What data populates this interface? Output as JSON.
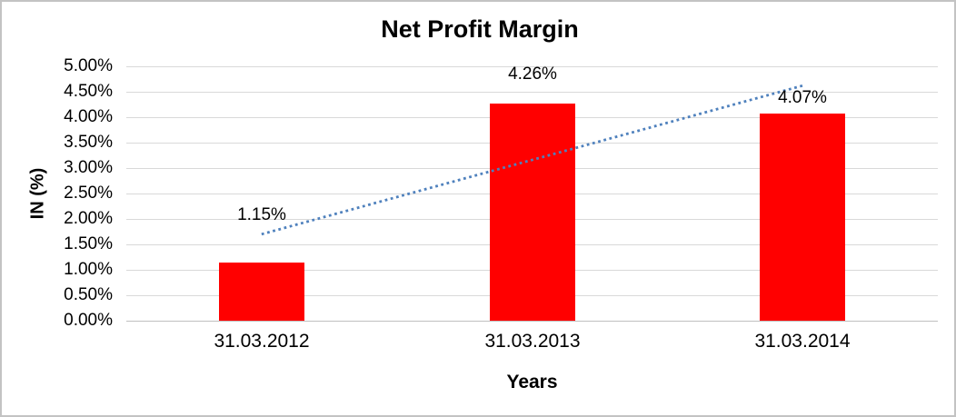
{
  "chart_data": {
    "type": "bar",
    "title": "Net Profit Margin",
    "xlabel": "Years",
    "ylabel": "IN (%)",
    "categories": [
      "31.03.2012",
      "31.03.2013",
      "31.03.2014"
    ],
    "values": [
      1.15,
      4.26,
      4.07
    ],
    "data_labels": [
      "1.15%",
      "4.26%",
      "4.07%"
    ],
    "unit": "%",
    "ylim": [
      0,
      5
    ],
    "y_tick_step": 0.5,
    "y_tick_labels": [
      "5.00%",
      "4.50%",
      "4.00%",
      "3.50%",
      "3.00%",
      "2.50%",
      "2.00%",
      "1.50%",
      "1.00%",
      "0.50%",
      "0.00%"
    ],
    "grid": true,
    "legend": "none",
    "bar_color": "#FF0000",
    "text_color": "#000000",
    "gridline_color": "#D9D9D9",
    "trendline": {
      "type": "linear",
      "style": "dotted",
      "color": "#4F81BD",
      "start_value_percent": 1.7,
      "end_value_percent": 4.62
    }
  }
}
